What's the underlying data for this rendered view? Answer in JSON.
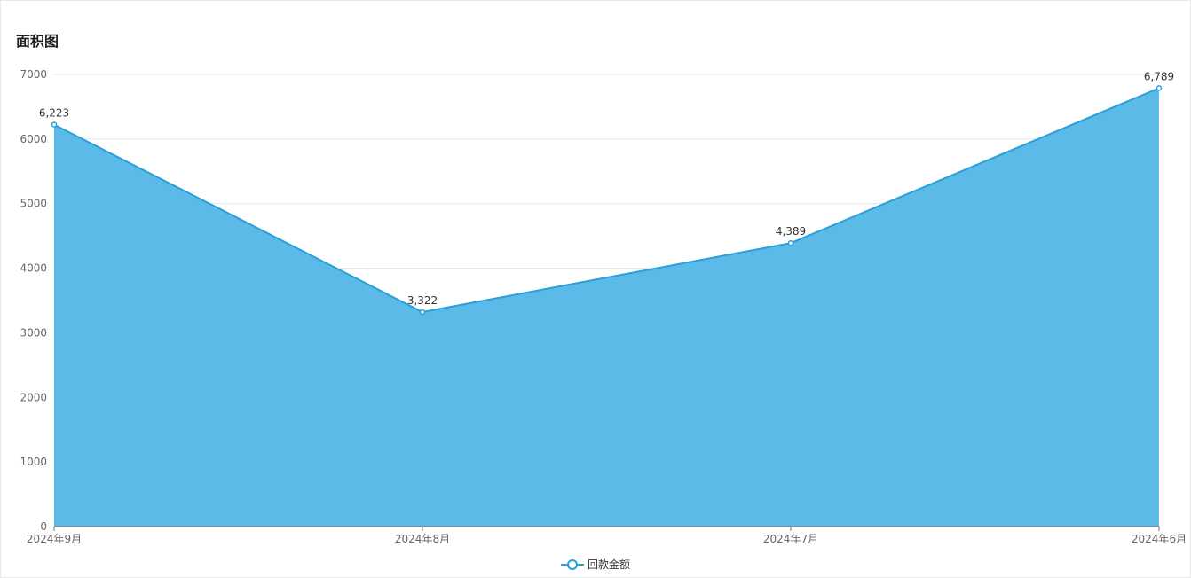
{
  "header": {
    "title": "面积图"
  },
  "chart_data": {
    "type": "area",
    "categories": [
      "2024年9月",
      "2024年8月",
      "2024年7月",
      "2024年6月"
    ],
    "series": [
      {
        "name": "回款金额",
        "values": [
          6223,
          3322,
          4389,
          6789
        ],
        "labels": [
          "6,223",
          "3,322",
          "4,389",
          "6,789"
        ]
      }
    ],
    "title": "面积图",
    "xlabel": "",
    "ylabel": "",
    "ylim": [
      0,
      7000
    ],
    "yticks": [
      0,
      1000,
      2000,
      3000,
      4000,
      5000,
      6000,
      7000
    ],
    "grid": true,
    "legend_position": "bottom-center",
    "colors": {
      "line": "#2a9fd8",
      "area": "#5bbae7",
      "grid": "#e6e6e6",
      "axis": "#6e7079"
    }
  }
}
